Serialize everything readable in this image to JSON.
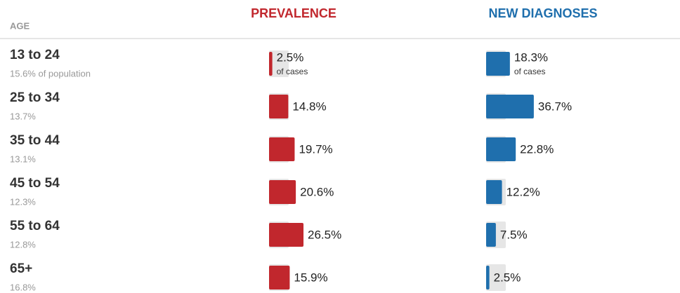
{
  "chart_data": {
    "type": "bar",
    "column_header": "AGE",
    "categories": [
      "13 to 24",
      "25 to 34",
      "35 to 44",
      "45 to 54",
      "55 to 64",
      "65+"
    ],
    "population": [
      "15.6% of population",
      "13.7%",
      "13.1%",
      "12.3%",
      "12.8%",
      "16.8%"
    ],
    "unit_note": "of cases",
    "series": [
      {
        "name": "PREVALENCE",
        "color": "#c1272d",
        "values": [
          2.5,
          14.8,
          19.7,
          20.6,
          26.5,
          15.9
        ],
        "value_labels": [
          "2.5%",
          "14.8%",
          "19.7%",
          "20.6%",
          "26.5%",
          "15.9%"
        ]
      },
      {
        "name": "NEW DIAGNOSES",
        "color": "#1f6fad",
        "values": [
          18.3,
          36.7,
          22.8,
          12.2,
          7.5,
          2.5
        ],
        "value_labels": [
          "18.3%",
          "36.7%",
          "22.8%",
          "12.2%",
          "7.5%",
          "2.5%"
        ]
      }
    ]
  }
}
